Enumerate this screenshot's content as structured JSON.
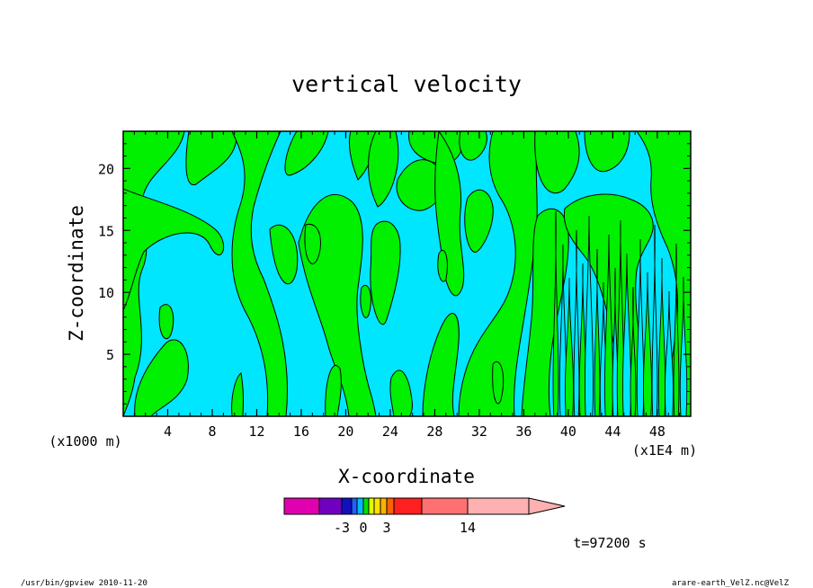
{
  "chart_data": {
    "type": "heatmap",
    "title": "vertical velocity",
    "xlabel": "X-coordinate",
    "ylabel": "Z-coordinate",
    "x_unit_label": "(x1000 m)",
    "x_scale_label": "(x1E4 m)",
    "xlim": [
      0,
      51
    ],
    "ylim": [
      0,
      23
    ],
    "x_ticks": [
      4,
      8,
      12,
      16,
      20,
      24,
      28,
      32,
      36,
      40,
      44,
      48
    ],
    "y_ticks": [
      5,
      10,
      15,
      20
    ],
    "colorbar": {
      "colors": [
        "#e000b0",
        "#7000c0",
        "#1010c0",
        "#2060ff",
        "#00b8ff",
        "#00e000",
        "#e0ff00",
        "#ffe000",
        "#ffb000",
        "#ff6000",
        "#ff2020",
        "#ff7070",
        "#ffb0b0"
      ],
      "tick_labels": [
        "-3",
        "0",
        "3",
        "14"
      ],
      "extend": "max"
    },
    "field_colors": {
      "negative": "#00e6ff",
      "positive": "#00f000",
      "contour": "#000000"
    },
    "timestamp": "t=97200 s"
  },
  "footer": {
    "left": "/usr/bin/gpview   2010-11-20",
    "right": "arare-earth_VelZ.nc@VelZ"
  }
}
